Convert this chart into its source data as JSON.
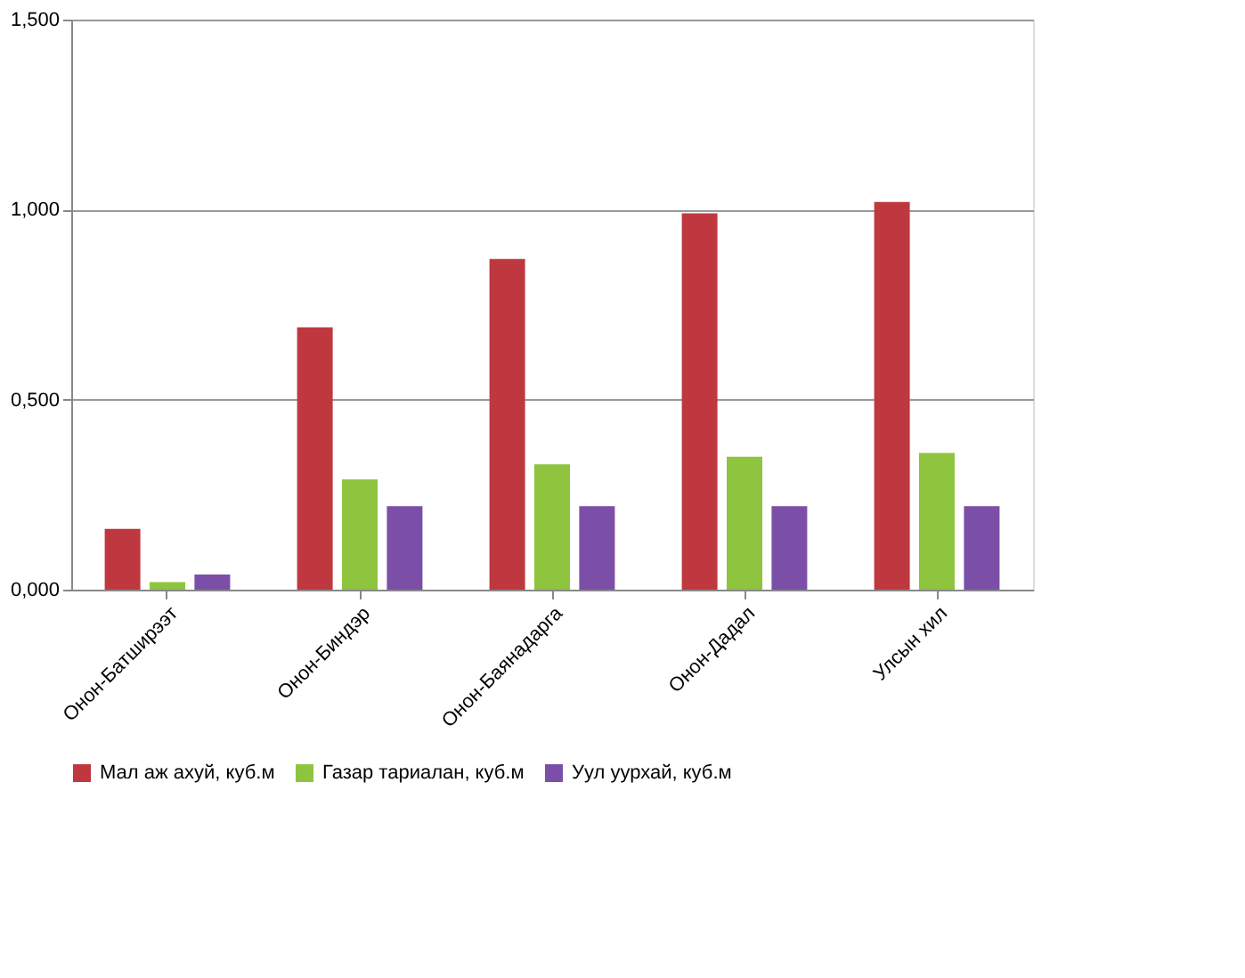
{
  "chart_data": {
    "type": "bar",
    "categories": [
      "Онон-Батширээт",
      "Онон-Биндэр",
      "Онон-Баянадарга",
      "Онон-Дадал",
      "Улсын хил"
    ],
    "series": [
      {
        "name": "Мал аж ахуй, куб.м",
        "color": "#c0383f",
        "values": [
          0.16,
          0.69,
          0.87,
          0.99,
          1.02
        ]
      },
      {
        "name": "Газар тариалан, куб.м",
        "color": "#8fc43f",
        "values": [
          0.02,
          0.29,
          0.33,
          0.35,
          0.36
        ]
      },
      {
        "name": "Уул уурхай, куб.м",
        "color": "#7b4fa8",
        "values": [
          0.04,
          0.22,
          0.22,
          0.22,
          0.22
        ]
      }
    ],
    "ylim": [
      0,
      1.5
    ],
    "yticks": [
      {
        "value": 0,
        "label": "0,000"
      },
      {
        "value": 0.5,
        "label": "0,500"
      },
      {
        "value": 1,
        "label": "1,000"
      },
      {
        "value": 1.5,
        "label": "1,500"
      }
    ],
    "grid": "y",
    "legend": "bottom"
  }
}
